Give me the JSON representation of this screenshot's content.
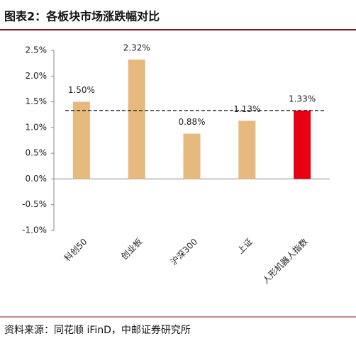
{
  "chart_data": {
    "type": "bar",
    "title": "图表2：各板块市场涨跌幅对比",
    "source": "资料来源：同花顺 iFinD，中邮证券研究所",
    "categories": [
      "科创50",
      "创业板",
      "沪深300",
      "上证",
      "人形机器人指数"
    ],
    "values": [
      1.5,
      2.32,
      0.88,
      1.13,
      1.33
    ],
    "value_labels": [
      "1.50%",
      "2.32%",
      "0.88%",
      "1.13%",
      "1.33%"
    ],
    "colors": [
      "#E6B97E",
      "#E6B97E",
      "#E6B97E",
      "#E6B97E",
      "#E60012"
    ],
    "reference_line": 1.33,
    "ylim": [
      -1.0,
      2.5
    ],
    "yticks": [
      {
        "value": -1.0,
        "label": "-1.0%"
      },
      {
        "value": -0.5,
        "label": "-0.5%"
      },
      {
        "value": 0,
        "label": "0.0%"
      },
      {
        "value": 0.5,
        "label": "0.5%"
      },
      {
        "value": 1.0,
        "label": "1.0%"
      },
      {
        "value": 1.5,
        "label": "1.5%"
      },
      {
        "value": 2.0,
        "label": "2.0%"
      },
      {
        "value": 2.5,
        "label": "2.5%"
      }
    ],
    "grid": false
  }
}
